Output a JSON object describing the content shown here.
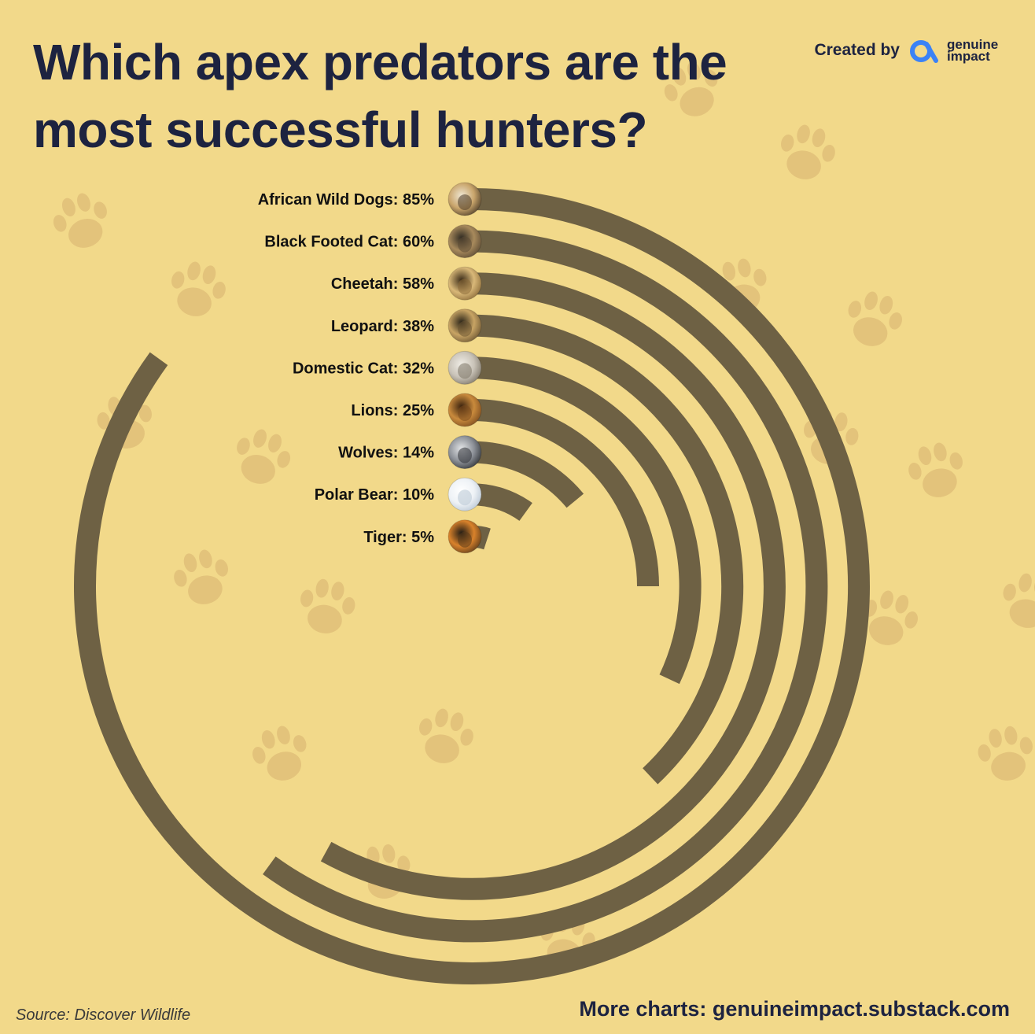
{
  "header": {
    "title": "Which apex predators are the most successful hunters?",
    "created_by": "Created by",
    "brand_line1": "genuine",
    "brand_line2": "impact"
  },
  "footer": {
    "source": "Source: Discover Wildlife",
    "more_charts": "More charts: genuineimpact.substack.com"
  },
  "colors": {
    "background": "#f2d98a",
    "bar": "#6e6144",
    "paw": "#e3c37b",
    "title": "#1d2340",
    "brand_accent": "#3b82f6"
  },
  "chart_data": {
    "type": "bar",
    "variant": "radial",
    "unit": "%",
    "max_value": 100,
    "categories": [
      "African Wild Dogs",
      "Black Footed Cat",
      "Cheetah",
      "Leopard",
      "Domestic Cat",
      "Lions",
      "Wolves",
      "Polar Bear",
      "Tiger"
    ],
    "values": [
      85,
      60,
      58,
      38,
      32,
      25,
      14,
      10,
      5
    ],
    "labels": [
      "African Wild Dogs: 85%",
      "Black Footed Cat: 60%",
      "Cheetah: 58%",
      "Leopard: 38%",
      "Domestic Cat: 32%",
      "Lions: 25%",
      "Wolves: 14%",
      "Polar Bear: 10%",
      "Tiger: 5%"
    ],
    "icons": [
      "wild-dog-photo",
      "black-footed-cat-photo",
      "cheetah-photo",
      "leopard-photo",
      "domestic-cat-photo",
      "lion-photo",
      "wolf-photo",
      "polar-bear-photo",
      "tiger-photo"
    ],
    "grid": false,
    "legend": "none"
  }
}
